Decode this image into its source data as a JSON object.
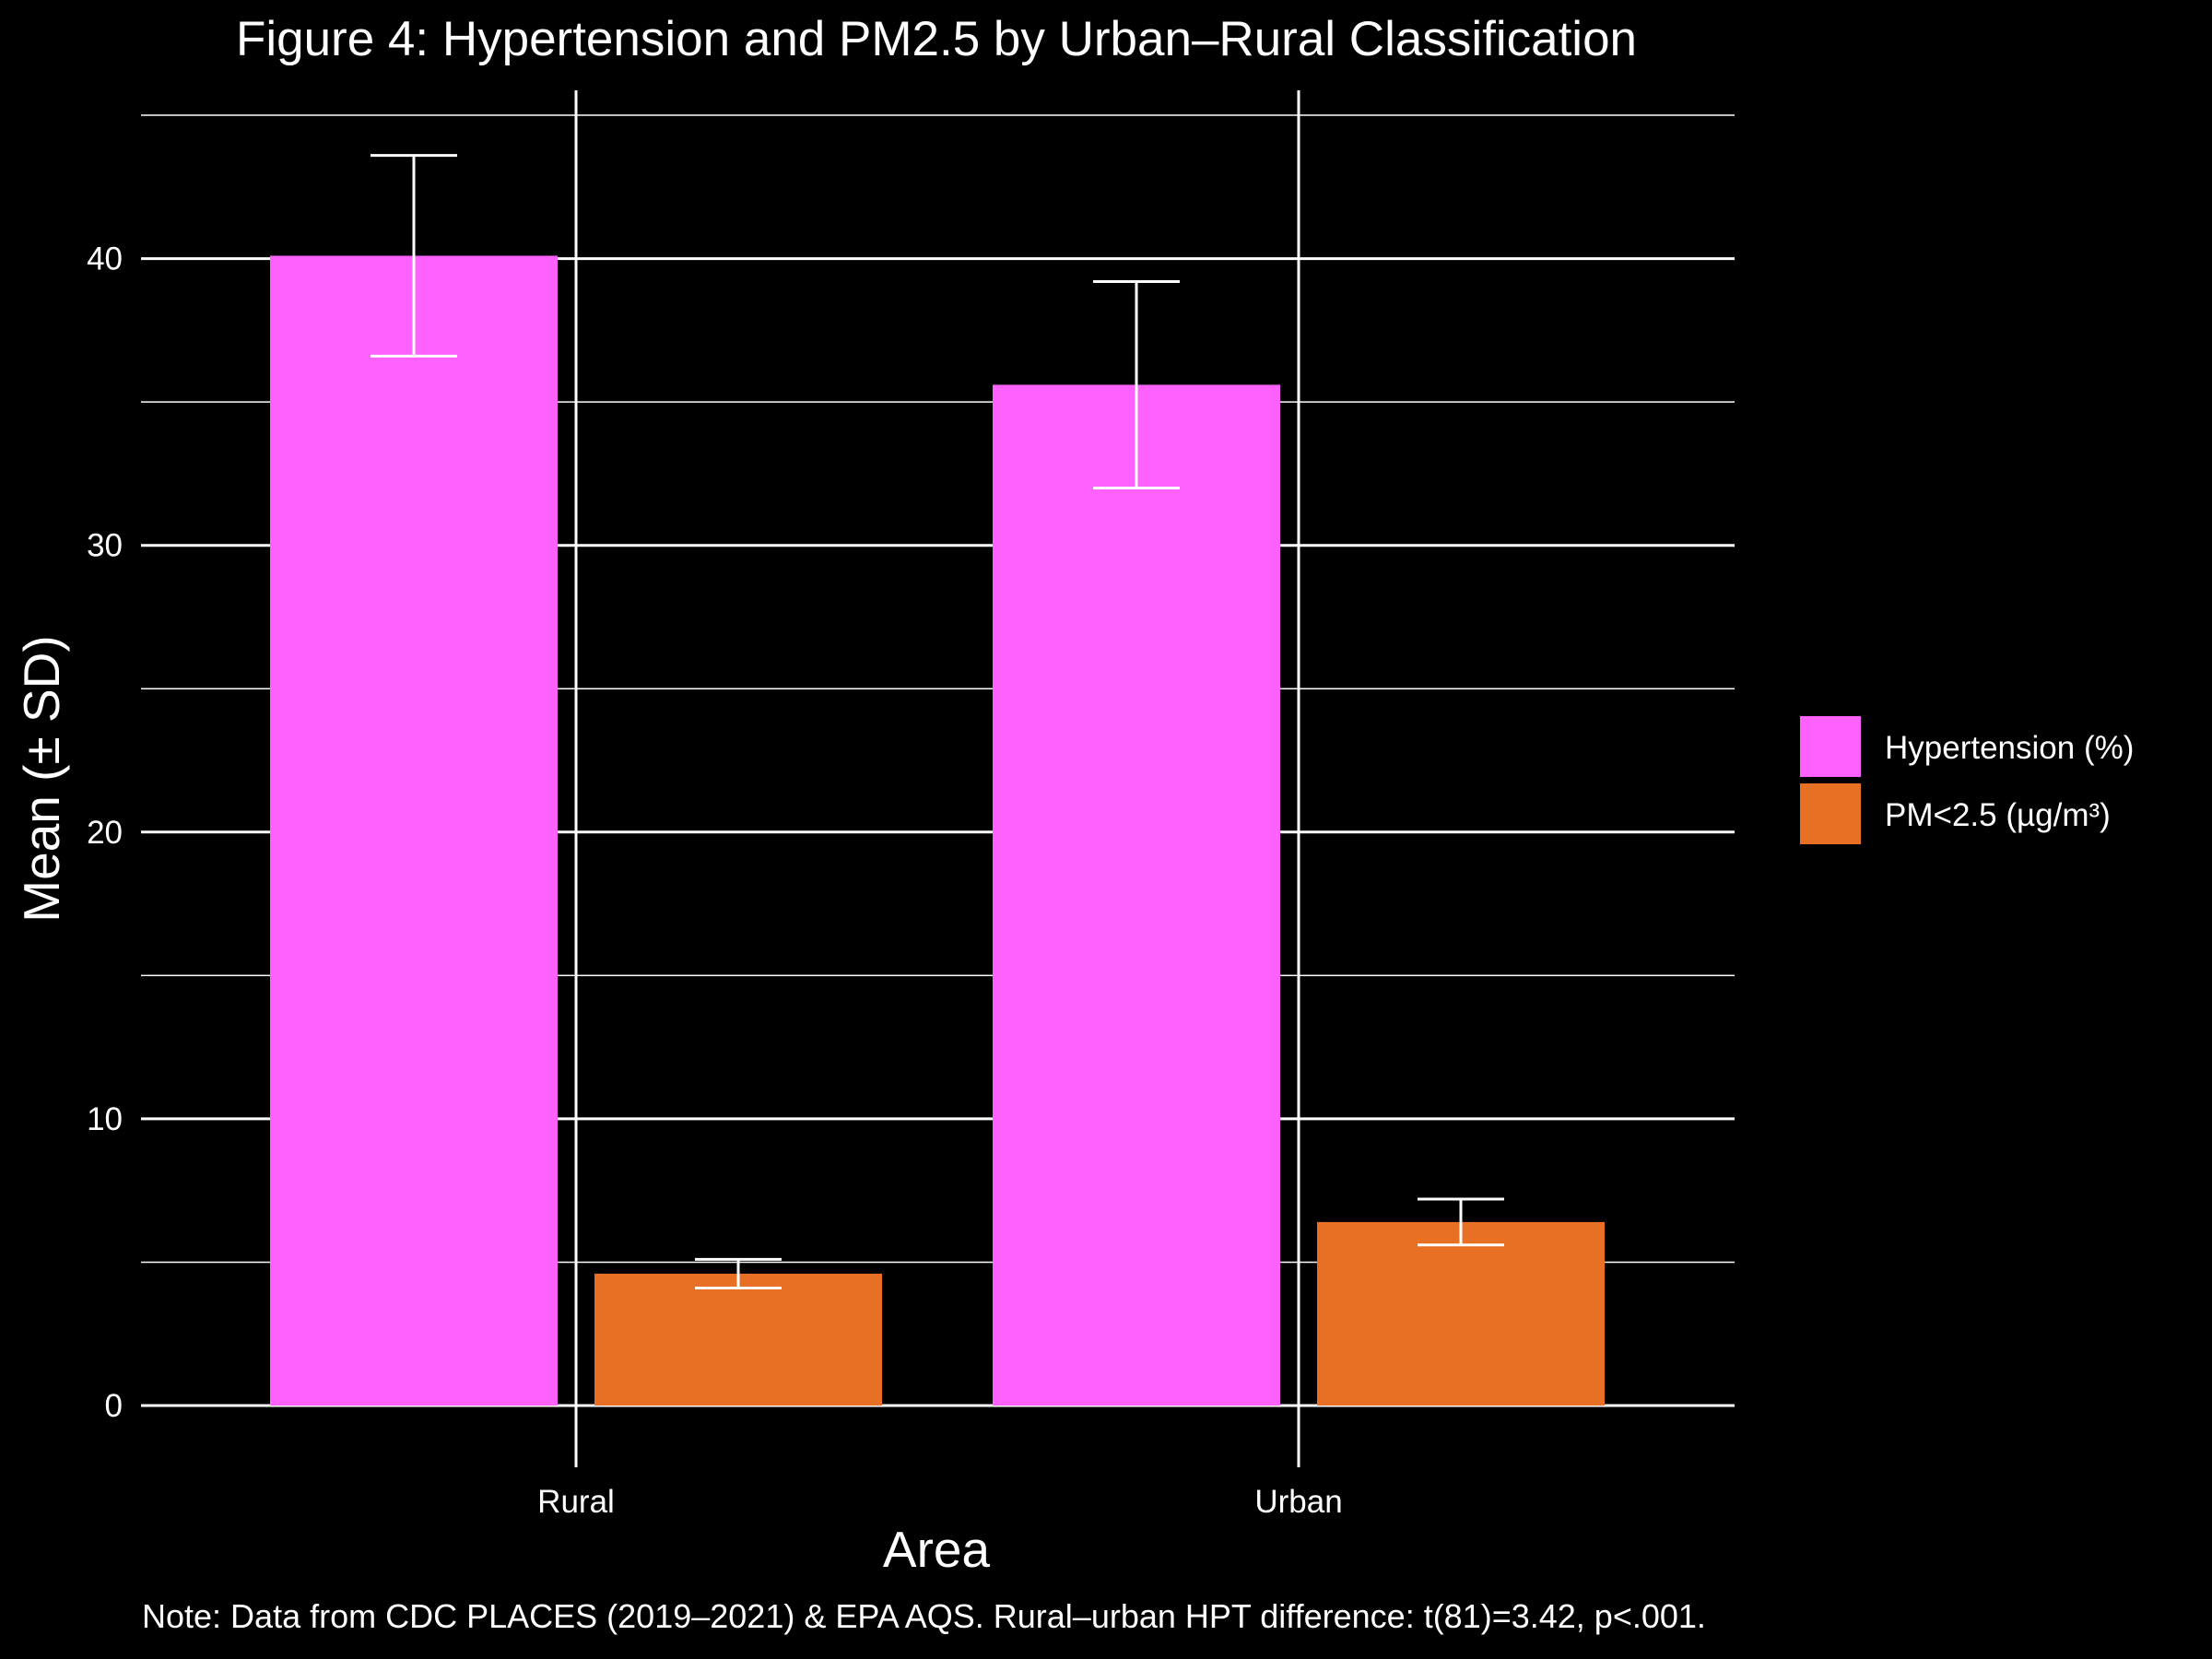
{
  "chart_data": {
    "type": "bar",
    "title": "Figure 4: Hypertension and PM2.5 by Urban–Rural Classification",
    "xlabel": "Area",
    "ylabel": "Mean (± SD)",
    "categories": [
      "Rural",
      "Urban"
    ],
    "series": [
      {
        "name": "Hypertension (%)",
        "color": "#FF61FF",
        "values": [
          40.1,
          35.6
        ],
        "sd": [
          3.5,
          3.6
        ]
      },
      {
        "name": "PM<2.5 (µg/m³)",
        "color": "#E87025",
        "values": [
          4.6,
          6.4
        ],
        "sd": [
          0.5,
          0.8
        ]
      }
    ],
    "ylim": [
      0,
      45
    ],
    "yticks": [
      0,
      10,
      20,
      30,
      40
    ],
    "grid": true,
    "legend_position": "right",
    "note": "Note: Data from CDC PLACES (2019–2021) & EPA AQS. Rural–urban HPT difference: t(81)=3.42, p<.001."
  }
}
